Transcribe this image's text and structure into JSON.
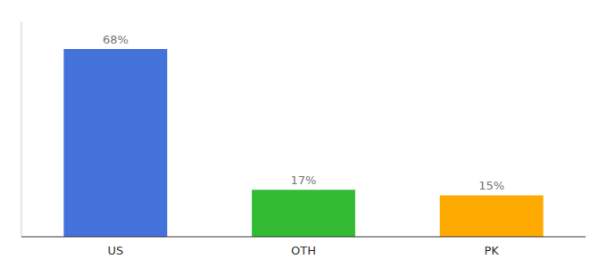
{
  "chart_data": {
    "type": "bar",
    "categories": [
      "US",
      "OTH",
      "PK"
    ],
    "values": [
      68,
      17,
      15
    ],
    "value_labels": [
      "68%",
      "17%",
      "15%"
    ],
    "colors": [
      "#4472db",
      "#33bb33",
      "#ffaa00"
    ],
    "ylim": [
      0,
      78
    ],
    "data_labels": true,
    "tick_labels": "x"
  }
}
